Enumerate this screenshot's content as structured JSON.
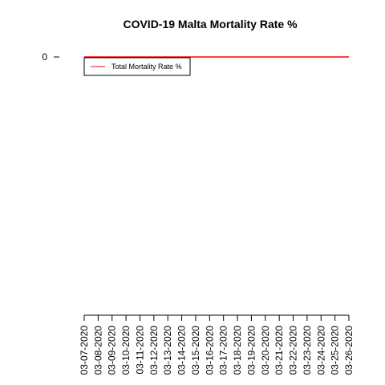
{
  "chart_data": {
    "type": "line",
    "title": "COVID-19 Malta Mortality Rate %",
    "xlabel": "",
    "ylabel": "",
    "x": [
      "03-07-2020",
      "03-08-2020",
      "03-09-2020",
      "03-10-2020",
      "03-11-2020",
      "03-12-2020",
      "03-13-2020",
      "03-14-2020",
      "03-15-2020",
      "03-16-2020",
      "03-17-2020",
      "03-18-2020",
      "03-19-2020",
      "03-20-2020",
      "03-21-2020",
      "03-22-2020",
      "03-23-2020",
      "03-24-2020",
      "03-25-2020",
      "03-26-2020"
    ],
    "y_ticks": [
      "0"
    ],
    "series": [
      {
        "name": "Total Mortality Rate %",
        "color": "#ff0000",
        "values": [
          0,
          0,
          0,
          0,
          0,
          0,
          0,
          0,
          0,
          0,
          0,
          0,
          0,
          0,
          0,
          0,
          0,
          0,
          0,
          0
        ]
      }
    ],
    "legend": {
      "position": "top-left",
      "entries": [
        "Total Mortality Rate %"
      ]
    },
    "grid": false
  }
}
